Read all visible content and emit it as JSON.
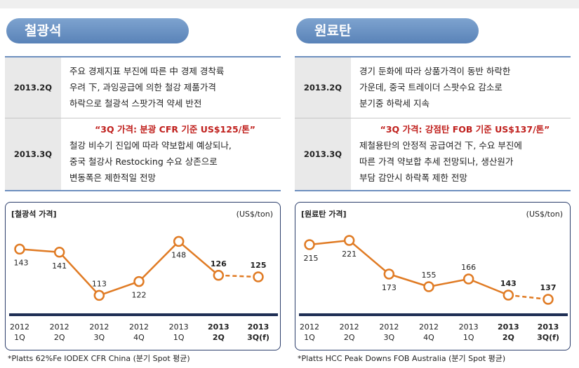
{
  "panels": [
    {
      "title": "철광석",
      "rows": [
        {
          "label": "2013.2Q",
          "highlight": "",
          "lines": [
            "주요 경제지표 부진에 따른 中 경제 경착륙",
            "우려 下, 과잉공급에 의한 철강 제품가격",
            "하락으로 철광석 스팟가격 약세 반전"
          ]
        },
        {
          "label": "2013.3Q",
          "highlight": "“3Q 가격: 분광 CFR 기준 US$125/톤”",
          "lines": [
            "철강 비수기 진입에 따라 약보합세 예상되나,",
            "중국 철강사 Restocking 수요 상존으로",
            "변동폭은 제한적일 전망"
          ]
        }
      ],
      "footnote": "*Platts 62%Fe IODEX CFR China (분기 Spot 평균)",
      "chart_data": {
        "type": "line",
        "title": "[철광석 가격]",
        "unit": "(US$/ton)",
        "categories": [
          [
            "2012",
            "1Q"
          ],
          [
            "2012",
            "2Q"
          ],
          [
            "2012",
            "3Q"
          ],
          [
            "2012",
            "4Q"
          ],
          [
            "2013",
            "1Q"
          ],
          [
            "2013",
            "2Q"
          ],
          [
            "2013",
            "3Q(f)"
          ]
        ],
        "bold_categories": [
          5,
          6
        ],
        "values": [
          143,
          141,
          113,
          122,
          148,
          126,
          125
        ],
        "forecast_index": 6,
        "bold_values": [
          5,
          6
        ],
        "label_pos": [
          "below",
          "below",
          "above",
          "below",
          "below",
          "above",
          "above"
        ],
        "ylim": [
          105,
          155
        ],
        "color": "#e07b24"
      }
    },
    {
      "title": "원료탄",
      "rows": [
        {
          "label": "2013.2Q",
          "highlight": "",
          "lines": [
            "경기 둔화에 따라 상품가격이 동반 하락한",
            "가운데, 중국 트레이더 스팟수요 감소로",
            "분기중 하락세 지속"
          ]
        },
        {
          "label": "2013.3Q",
          "highlight": "“3Q 가격: 강점탄 FOB 기준 US$137/톤”",
          "lines": [
            "제철용탄의 안정적 공급여건 下, 수요 부진에",
            "따른 가격 약보합 추세 전망되나, 생산원가",
            "부담 감안시 하락폭 제한 전망"
          ]
        }
      ],
      "footnote": "*Platts HCC Peak Downs FOB Australia (분기 Spot 평균)",
      "chart_data": {
        "type": "line",
        "title": "[원료탄 가격]",
        "unit": "(US$/ton)",
        "categories": [
          [
            "2012",
            "1Q"
          ],
          [
            "2012",
            "2Q"
          ],
          [
            "2012",
            "3Q"
          ],
          [
            "2012",
            "4Q"
          ],
          [
            "2013",
            "1Q"
          ],
          [
            "2013",
            "2Q"
          ],
          [
            "2013",
            "3Q(f)"
          ]
        ],
        "bold_categories": [
          5,
          6
        ],
        "values": [
          215,
          221,
          173,
          155,
          166,
          143,
          137
        ],
        "forecast_index": 6,
        "bold_values": [
          5,
          6
        ],
        "label_pos": [
          "below",
          "below",
          "below",
          "above",
          "above",
          "above",
          "above"
        ],
        "ylim": [
          125,
          235
        ],
        "color": "#e07b24"
      }
    }
  ]
}
